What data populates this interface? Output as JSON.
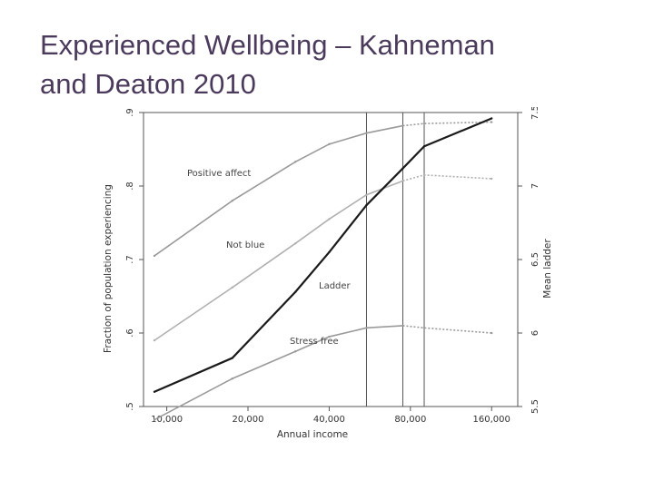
{
  "slide": {
    "title_line1": "Experienced Wellbeing – Kahneman",
    "title_line2": "and Deaton 2010"
  },
  "chart_data": {
    "type": "line",
    "title": "",
    "xlabel": "Annual income",
    "ylabel_left": "Fraction of population experiencing",
    "ylabel_right": "Mean ladder",
    "x_scale": "log",
    "x_ticks": [
      10000,
      20000,
      40000,
      80000,
      160000
    ],
    "x_tick_labels": [
      "10,000",
      "20,000",
      "40,000",
      "80,000",
      "160,000"
    ],
    "xlim": [
      8200,
      200000
    ],
    "ylim_left": [
      0.5,
      0.9
    ],
    "yticks_left": [
      0.5,
      0.6,
      0.7,
      0.8,
      0.9
    ],
    "ytick_labels_left": [
      ".5",
      ".6",
      ".7",
      ".8",
      ".9"
    ],
    "ylim_right": [
      5.5,
      7.5
    ],
    "yticks_right": [
      5.5,
      6,
      6.5,
      7,
      7.5
    ],
    "ytick_labels_right": [
      "5.5",
      "6",
      "6.5",
      "7",
      "7.5"
    ],
    "vertical_lines": [
      55000,
      75000,
      90000
    ],
    "grid": false,
    "series": [
      {
        "label": "Positive affect",
        "axis": "left",
        "color": "#9a9a9a",
        "x": [
          9000,
          17500,
          30000,
          40000,
          55000,
          75000,
          90000,
          160000
        ],
        "y": [
          0.705,
          0.78,
          0.833,
          0.857,
          0.872,
          0.882,
          0.885,
          0.887
        ]
      },
      {
        "label": "Not blue",
        "axis": "left",
        "color": "#b0b0b0",
        "x": [
          9000,
          17500,
          30000,
          40000,
          55000,
          75000,
          90000,
          160000
        ],
        "y": [
          0.59,
          0.662,
          0.722,
          0.755,
          0.788,
          0.807,
          0.815,
          0.81
        ]
      },
      {
        "label": "Stress free",
        "axis": "left",
        "color": "#9a9a9a",
        "x": [
          9000,
          17500,
          30000,
          40000,
          55000,
          75000,
          90000,
          160000
        ],
        "y": [
          0.482,
          0.538,
          0.575,
          0.595,
          0.607,
          0.61,
          0.607,
          0.6
        ]
      },
      {
        "label": "Ladder",
        "axis": "right",
        "color": "#1a1a1a",
        "x": [
          9000,
          17500,
          30000,
          40000,
          55000,
          75000,
          90000,
          160000
        ],
        "y": [
          5.6,
          5.83,
          6.28,
          6.55,
          6.87,
          7.12,
          7.27,
          7.46
        ]
      }
    ]
  }
}
